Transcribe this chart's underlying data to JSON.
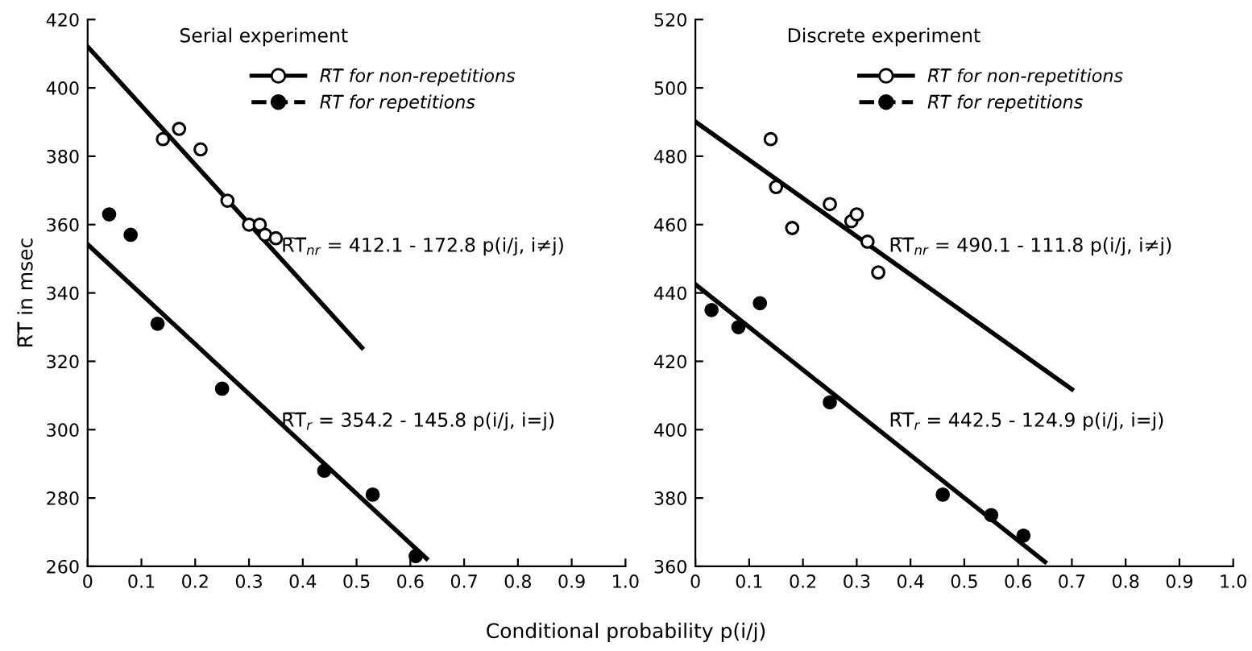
{
  "chart_data": [
    {
      "type": "scatter",
      "title": "Serial experiment",
      "ylabel": "R̅T̅ in msec",
      "xlabel": "Conditional probability p(i/j)",
      "xlim": [
        0,
        1.0
      ],
      "ylim": [
        260,
        420
      ],
      "xticks": [
        0,
        0.1,
        0.2,
        0.3,
        0.4,
        0.5,
        0.6,
        0.7,
        0.8,
        0.9,
        {
          "value": 1,
          "label": "1.0"
        }
      ],
      "yticks": [
        260,
        280,
        300,
        320,
        340,
        360,
        380,
        400,
        420
      ],
      "grid": false,
      "legend": "top",
      "series": [
        {
          "name": "R̅T̅ for non-repetitions",
          "color": "#ffffff",
          "marker": "circle",
          "line_style": "solid",
          "x": [
            0.14,
            0.17,
            0.21,
            0.26,
            0.3,
            0.32,
            0.33,
            0.35
          ],
          "values": [
            385,
            388,
            382,
            367,
            360,
            360,
            357,
            356
          ]
        },
        {
          "name": "R̅T̅ for repetitions",
          "color": "#000000",
          "marker": "circle",
          "line_style": "dashed",
          "x": [
            0.04,
            0.08,
            0.13,
            0.25,
            0.44,
            0.53,
            0.61
          ],
          "values": [
            363,
            357,
            331,
            312,
            288,
            281,
            263
          ]
        },
        {
          "type": "line",
          "color": "#000000",
          "line_style": "solid",
          "x": [
            0,
            0.51
          ],
          "values": [
            412.1,
            324
          ]
        },
        {
          "type": "line",
          "color": "#000000",
          "line_style": "solid",
          "x": [
            0,
            0.63
          ],
          "values": [
            354.2,
            262.3
          ]
        }
      ],
      "annotations": [
        "R̅T̅$_{nr}$ = 412.1 - 172.8 p(i/j, i≠j)",
        "R̅T̅$_{r}$ = 354.2 - 145.8 p(i/j, i=j)"
      ]
    },
    {
      "type": "scatter",
      "title": "Discrete experiment",
      "xlim": [
        0,
        1.0
      ],
      "ylim": [
        360,
        520
      ],
      "xticks": [
        0,
        0.1,
        0.2,
        0.3,
        0.4,
        0.5,
        0.6,
        0.7,
        0.8,
        0.9,
        {
          "value": 1,
          "label": "1.0"
        }
      ],
      "yticks": [
        360,
        380,
        400,
        420,
        440,
        460,
        480,
        500,
        520
      ],
      "grid": false,
      "legend": "top",
      "series": [
        {
          "name": "R̅T̅ for non-repetitions",
          "color": "#ffffff",
          "marker": "circle",
          "line_style": "solid",
          "x": [
            0.14,
            0.15,
            0.18,
            0.25,
            0.29,
            0.3,
            0.32,
            0.34
          ],
          "values": [
            485,
            471,
            459,
            466,
            461,
            463,
            455,
            446
          ]
        },
        {
          "name": "R̅T̅ for repetitions",
          "color": "#000000",
          "marker": "circle",
          "line_style": "dashed",
          "x": [
            0.03,
            0.08,
            0.12,
            0.25,
            0.46,
            0.55,
            0.61
          ],
          "values": [
            435,
            430,
            437,
            408,
            381,
            375,
            369
          ]
        },
        {
          "type": "line",
          "color": "#000000",
          "line_style": "solid",
          "x": [
            0,
            0.7
          ],
          "values": [
            490.1,
            411.8
          ]
        },
        {
          "type": "line",
          "color": "#000000",
          "line_style": "solid",
          "x": [
            0,
            0.65
          ],
          "values": [
            442.5,
            361.3
          ]
        }
      ],
      "annotations": [
        "R̅T̅$_{nr}$ = 490.1 - 111.8 p(i/j, i≠j)",
        "R̅T̅$_{r}$ = 442.5 - 124.9 p(i/j, i=j)"
      ]
    }
  ]
}
